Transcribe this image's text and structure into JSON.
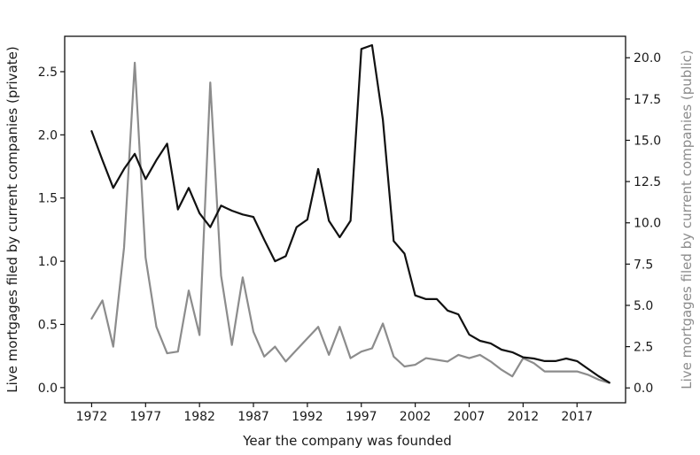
{
  "chart_data": {
    "type": "line",
    "xlabel": "Year the company was founded",
    "ylabel_left": "Live mortgages filed by current companies (private)",
    "ylabel_right": "Live mortgages filed by current companies (public)",
    "xlim": [
      1969.5,
      2021.5
    ],
    "ylim_left": [
      -0.12,
      2.78
    ],
    "ylim_right": [
      -0.9,
      21.3
    ],
    "x_ticks": [
      1972,
      1977,
      1982,
      1987,
      1992,
      1997,
      2002,
      2007,
      2012,
      2017
    ],
    "y_ticks_left": [
      "0.0",
      "0.5",
      "1.0",
      "1.5",
      "2.0",
      "2.5"
    ],
    "y_ticks_right": [
      "0.0",
      "2.5",
      "5.0",
      "7.5",
      "10.0",
      "12.5",
      "15.0",
      "17.5",
      "20.0"
    ],
    "grid": false,
    "colors": {
      "private": "#111111",
      "public": "#8c8c8c"
    },
    "series": [
      {
        "axis": "left",
        "x": [
          1972,
          1973,
          1974,
          1975,
          1976,
          1977,
          1978,
          1979,
          1980,
          1981,
          1982,
          1983,
          1984,
          1985,
          1986,
          1987,
          1988,
          1989,
          1990,
          1991,
          1992,
          1993,
          1994,
          1995,
          1996,
          1997,
          1998,
          1999,
          2000,
          2001,
          2002,
          2003,
          2004,
          2005,
          2006,
          2007,
          2008,
          2009,
          2010,
          2011,
          2012,
          2013,
          2014,
          2015,
          2016,
          2017,
          2018,
          2019,
          2020
        ],
        "values": [
          2.03,
          1.8,
          1.58,
          1.73,
          1.85,
          1.65,
          1.8,
          1.93,
          1.41,
          1.58,
          1.38,
          1.27,
          1.44,
          1.4,
          1.37,
          1.35,
          1.17,
          1.0,
          1.04,
          1.27,
          1.33,
          1.73,
          1.32,
          1.19,
          1.32,
          2.68,
          2.71,
          2.12,
          1.16,
          1.06,
          0.73,
          0.7,
          0.7,
          0.61,
          0.58,
          0.42,
          0.37,
          0.35,
          0.3,
          0.28,
          0.24,
          0.23,
          0.21,
          0.21,
          0.23,
          0.21,
          0.15,
          0.09,
          0.04
        ]
      },
      {
        "axis": "right",
        "x": [
          1972,
          1973,
          1974,
          1975,
          1976,
          1977,
          1978,
          1979,
          1980,
          1981,
          1982,
          1983,
          1984,
          1985,
          1986,
          1987,
          1988,
          1989,
          1990,
          1991,
          1992,
          1993,
          1994,
          1995,
          1996,
          1997,
          1998,
          1999,
          2000,
          2001,
          2002,
          2003,
          2004,
          2005,
          2006,
          2007,
          2008,
          2009,
          2010,
          2011,
          2012,
          2013,
          2014,
          2015,
          2016,
          2017,
          2018,
          2019,
          2020
        ],
        "values": [
          4.2,
          5.3,
          2.5,
          8.5,
          19.7,
          7.9,
          3.7,
          2.1,
          2.2,
          5.9,
          3.2,
          18.5,
          6.8,
          2.6,
          6.7,
          3.4,
          1.9,
          2.5,
          1.6,
          2.3,
          3.0,
          3.7,
          2.0,
          3.7,
          1.8,
          2.2,
          2.4,
          3.9,
          1.9,
          1.3,
          1.4,
          1.8,
          1.7,
          1.6,
          2.0,
          1.8,
          2.0,
          1.6,
          1.1,
          0.7,
          1.8,
          1.5,
          1.0,
          1.0,
          1.0,
          1.0,
          0.8,
          0.5,
          0.3
        ]
      }
    ]
  }
}
